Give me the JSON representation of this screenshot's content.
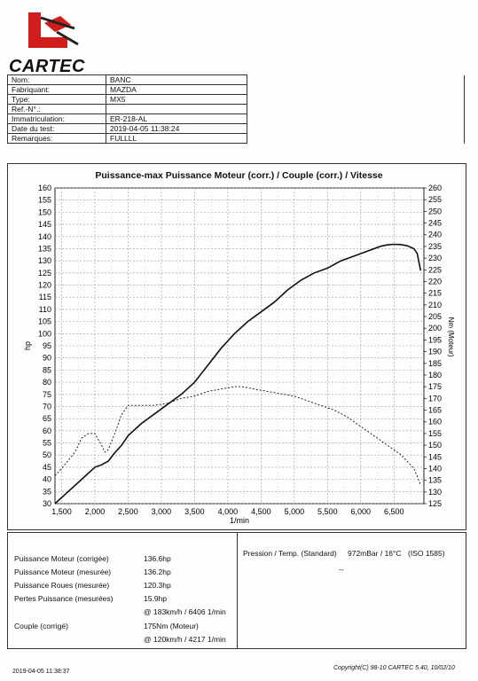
{
  "logo": {
    "brand": "CARTEC"
  },
  "vehicle": [
    {
      "label": "Nom:",
      "value": "BANC"
    },
    {
      "label": "Fabriquant:",
      "value": "MAZDA"
    },
    {
      "label": "Type:",
      "value": "MX5"
    },
    {
      "label": "Ref.-N°.:",
      "value": ""
    },
    {
      "label": "Immatriculation:",
      "value": "ER-218-AL"
    },
    {
      "label": "Date du test:",
      "value": "2019-04-05 11:38:24"
    },
    {
      "label": "Remarques:",
      "value": "FULLLL"
    }
  ],
  "chart_data": {
    "type": "line",
    "title": "Puissance-max Puissance Moteur (corr.) / Couple (corr.) / Vitesse",
    "xlabel": "1/min",
    "ylabel_left": "hp",
    "ylabel_right": "Nm (Moteur)",
    "xlim": [
      1400,
      6950
    ],
    "ylim_left": [
      30,
      160
    ],
    "ylim_right": [
      125,
      260
    ],
    "x_ticks": [
      1500,
      2000,
      2500,
      3000,
      3500,
      4000,
      4500,
      5000,
      5500,
      6000,
      6500
    ],
    "x_tick_labels": [
      "1,500",
      "2,000",
      "2,500",
      "3,000",
      "3,500",
      "4,000",
      "4,500",
      "5,000",
      "5,500",
      "6,000",
      "6,500"
    ],
    "y_left_ticks": [
      30,
      35,
      40,
      45,
      50,
      55,
      60,
      65,
      70,
      75,
      80,
      85,
      90,
      95,
      100,
      105,
      110,
      115,
      120,
      125,
      130,
      135,
      140,
      145,
      150,
      155,
      160
    ],
    "y_right_ticks": [
      125,
      130,
      135,
      140,
      145,
      150,
      155,
      160,
      165,
      170,
      175,
      180,
      185,
      190,
      195,
      200,
      205,
      210,
      215,
      220,
      225,
      230,
      235,
      240,
      245,
      250,
      255,
      260
    ],
    "grid": true,
    "series": [
      {
        "axis": "left",
        "style": "solid",
        "x": [
          1400,
          1600,
          1800,
          2000,
          2100,
          2200,
          2300,
          2400,
          2500,
          2700,
          2900,
          3100,
          3300,
          3500,
          3700,
          3900,
          4100,
          4300,
          4500,
          4700,
          4900,
          5100,
          5300,
          5500,
          5700,
          5900,
          6100,
          6300,
          6406,
          6500,
          6600,
          6700,
          6800,
          6850,
          6900
        ],
        "values": [
          30,
          35,
          40,
          45,
          46,
          47.5,
          51,
          54,
          58,
          63,
          67,
          71,
          75,
          80,
          87,
          94,
          100,
          105,
          109,
          113,
          118,
          122,
          125,
          127,
          130,
          132,
          134,
          136,
          136.6,
          136.8,
          136.7,
          136.2,
          135,
          133,
          126
        ]
      },
      {
        "axis": "right",
        "style": "dashed",
        "x": [
          1400,
          1500,
          1700,
          1800,
          1900,
          2000,
          2100,
          2150,
          2200,
          2300,
          2400,
          2500,
          2700,
          2900,
          3100,
          3300,
          3500,
          3700,
          3900,
          4100,
          4217,
          4400,
          4600,
          4800,
          5000,
          5200,
          5400,
          5600,
          5800,
          6000,
          6200,
          6400,
          6600,
          6800,
          6900
        ],
        "values": [
          137,
          140,
          147,
          153,
          155,
          155,
          150,
          147,
          148,
          155,
          163,
          167,
          167,
          167,
          168,
          170,
          171,
          173,
          174,
          175,
          175,
          174,
          173,
          172,
          171,
          169,
          167,
          165,
          162,
          158,
          154,
          150,
          146,
          140,
          133
        ]
      }
    ]
  },
  "results": {
    "left": [
      {
        "label": "Puissance Moteur (corrigée)",
        "value": "136.6hp"
      },
      {
        "label": "Puissance Moteur (mesurée)",
        "value": "136.2hp"
      },
      {
        "label": "Puissance Roues (mesurée)",
        "value": "120.3hp"
      },
      {
        "label": "Pertes Puissance (mesurées)",
        "value": "15.9hp"
      },
      {
        "label": "",
        "value": "@ 183km/h / 6406 1/min"
      },
      {
        "label": "Couple (corrigé)",
        "value": "175Nm (Moteur)"
      },
      {
        "label": "",
        "value": "@ 120km/h / 4217 1/min"
      }
    ],
    "pressure_label": "Pression / Temp. (Standard)",
    "pressure_value": "972mBar / 16°C",
    "standard": "(ISO 1585)",
    "pressure_extra": "--"
  },
  "footer": {
    "date": "2019-04-05 11:38:37",
    "copyright": "Copyright(C) 98-10 CARTEC 5.40, 10/02/10"
  }
}
